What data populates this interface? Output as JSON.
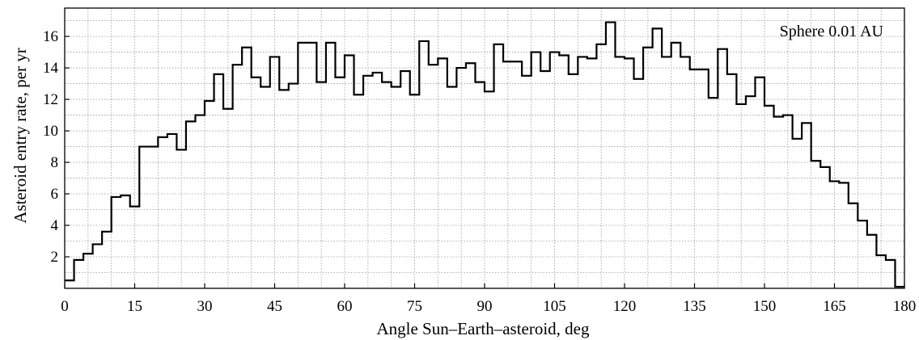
{
  "chart_data": {
    "type": "histogram-step",
    "title": "",
    "annotation": "Sphere 0.01 AU",
    "xlabel": "Angle Sun–Earth–asteroid, deg",
    "ylabel": "Asteroid entry rate, per yr",
    "xlim": [
      0,
      180
    ],
    "ylim": [
      0,
      17.8
    ],
    "xticks": [
      0,
      15,
      30,
      45,
      60,
      75,
      90,
      105,
      120,
      135,
      150,
      165,
      180
    ],
    "yticks": [
      2,
      4,
      6,
      8,
      10,
      12,
      14,
      16
    ],
    "bin_width": 2,
    "grid": true,
    "series": [
      {
        "x_start": [
          0,
          2,
          4,
          6,
          8,
          10,
          12,
          14,
          16,
          18,
          20,
          22,
          24,
          26,
          28,
          30,
          32,
          34,
          36,
          38,
          40,
          42,
          44,
          46,
          48,
          50,
          52,
          54,
          56,
          58,
          60,
          62,
          64,
          66,
          68,
          70,
          72,
          74,
          76,
          78,
          80,
          82,
          84,
          86,
          88,
          90,
          92,
          94,
          96,
          98,
          100,
          102,
          104,
          106,
          108,
          110,
          112,
          114,
          116,
          118,
          120,
          122,
          124,
          126,
          128,
          130,
          132,
          134,
          136,
          138,
          140,
          142,
          144,
          146,
          148,
          150,
          152,
          154,
          156,
          158,
          160,
          162,
          164,
          166,
          168,
          170,
          172,
          174,
          176,
          178
        ],
        "values": [
          0.5,
          1.8,
          2.2,
          2.8,
          3.6,
          5.8,
          5.9,
          5.2,
          9.0,
          9.0,
          9.6,
          9.8,
          8.8,
          10.6,
          11.0,
          11.9,
          13.6,
          11.4,
          14.2,
          15.3,
          13.4,
          12.8,
          14.7,
          12.6,
          13.0,
          15.6,
          15.6,
          13.1,
          15.6,
          13.4,
          14.8,
          12.3,
          13.5,
          13.7,
          13.1,
          12.8,
          13.8,
          12.3,
          15.7,
          14.2,
          14.6,
          12.8,
          14.0,
          14.3,
          13.1,
          12.5,
          15.5,
          14.4,
          14.4,
          13.5,
          15.0,
          13.8,
          15.0,
          14.8,
          13.6,
          14.7,
          14.6,
          15.5,
          16.9,
          14.7,
          14.6,
          13.3,
          15.3,
          16.5,
          14.7,
          15.6,
          14.7,
          13.9,
          13.9,
          12.1,
          15.2,
          13.6,
          11.7,
          12.2,
          13.4,
          11.6,
          10.9,
          11.0,
          9.5,
          10.5,
          8.1,
          7.7,
          6.8,
          6.7,
          5.4,
          4.3,
          3.4,
          2.1,
          1.8,
          0.1
        ]
      }
    ]
  }
}
